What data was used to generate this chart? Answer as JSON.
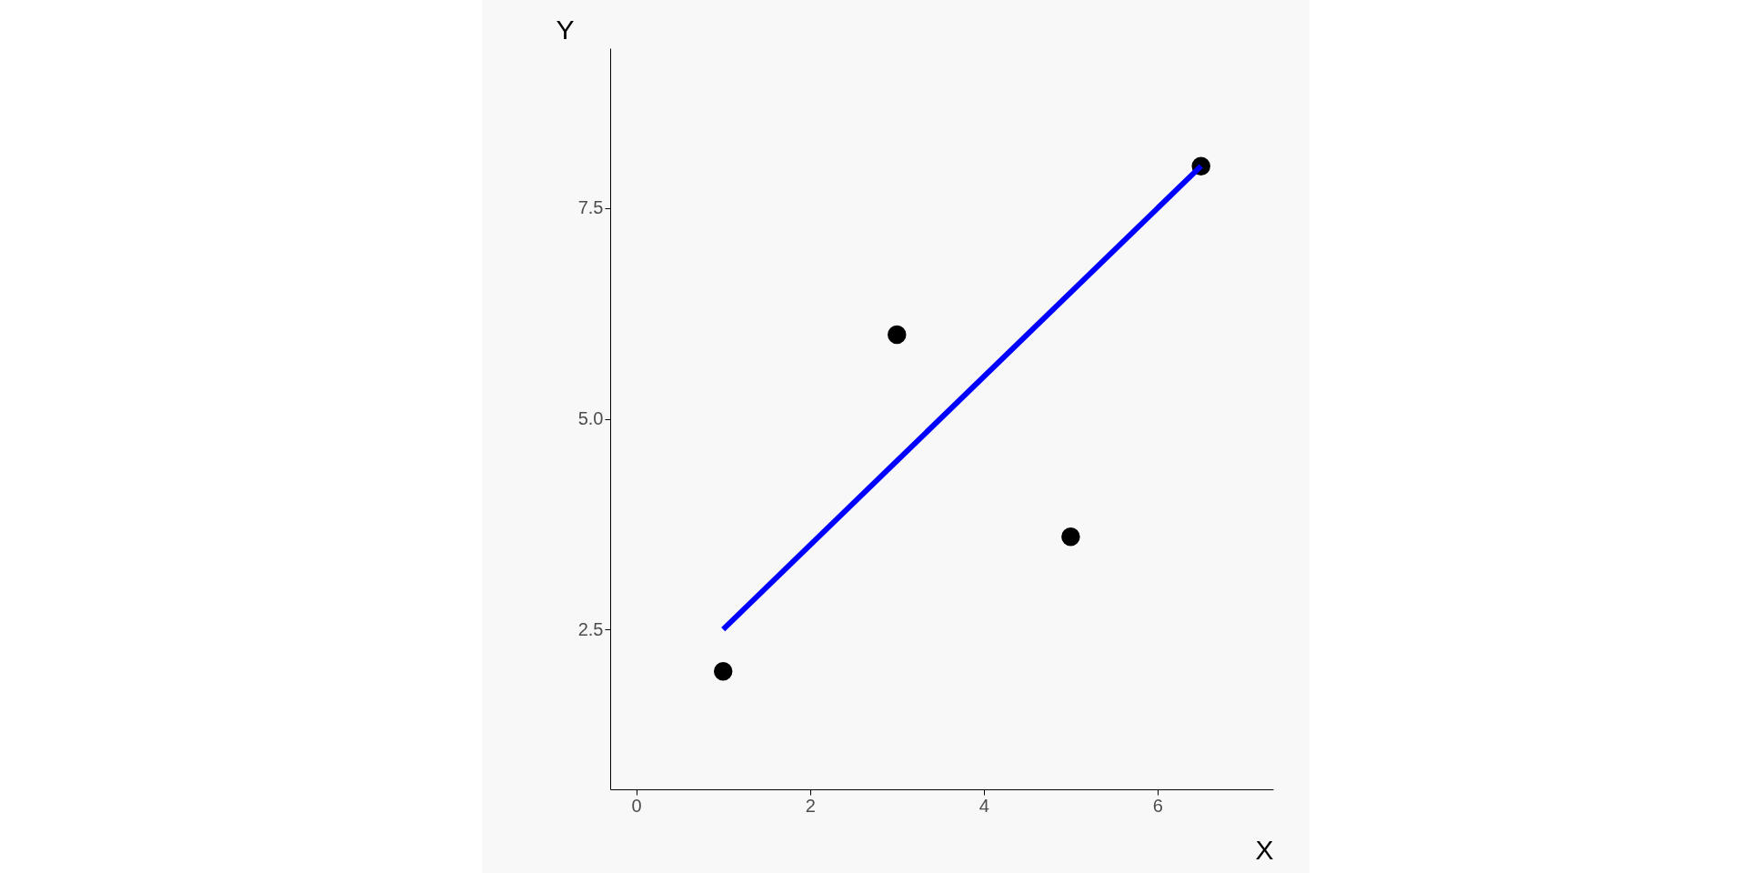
{
  "chart_data": {
    "type": "scatter",
    "xlabel": "X",
    "ylabel": "Y",
    "xlim": [
      -0.3,
      7.33
    ],
    "ylim": [
      0.6,
      9.4
    ],
    "xticks": [
      0,
      2,
      4,
      6
    ],
    "yticks": [
      {
        "value": 2.5,
        "label": "2.5"
      },
      {
        "value": 5,
        "label": "5.0"
      },
      {
        "value": 7.5,
        "label": "7.5"
      }
    ],
    "grid": false,
    "series": [
      {
        "color": "#000000",
        "marker": "circle",
        "x": [
          1,
          3,
          5,
          6.5
        ],
        "values": [
          2.0,
          6.0,
          3.6,
          8.0
        ]
      },
      {
        "type": "line",
        "color": "#0000ff",
        "line_style": "solid",
        "marker": "none",
        "x": [
          1,
          6.5
        ],
        "values": [
          2.5,
          8.0
        ]
      }
    ]
  }
}
